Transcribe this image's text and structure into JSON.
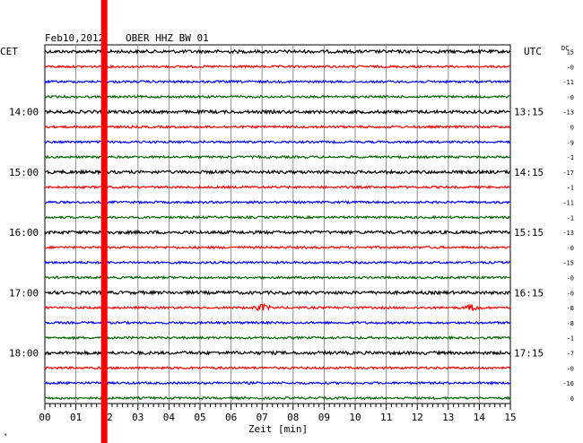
{
  "header": {
    "date": "Feb10,2012",
    "station": "OBER HHZ BW 01",
    "left_tz": "CET",
    "right_tz": "UTC",
    "dc_label": "DC"
  },
  "chart_data": {
    "type": "line",
    "title": "Feb10,2012 OBER HHZ BW 01",
    "xlabel": "Zeit [min]",
    "x_ticks": [
      "00",
      "01",
      "02",
      "03",
      "04",
      "05",
      "06",
      "07",
      "08",
      "09",
      "10",
      "11",
      "12",
      "13",
      "14",
      "15"
    ],
    "xlim": [
      0,
      15
    ],
    "grid": true,
    "trace_colors": [
      "#000000",
      "#ff0000",
      "#0000ff",
      "#006600"
    ],
    "left_time_labels": [
      "14:00",
      "15:00",
      "16:00",
      "17:00",
      "18:00"
    ],
    "right_time_labels": [
      "13:15",
      "14:15",
      "15:15",
      "16:15",
      "17:15"
    ],
    "dc_offsets": [
      "15",
      "-0",
      "-11",
      "-0",
      "-13",
      "0",
      "-9",
      "-1",
      "-17",
      "-1",
      "-11",
      "-1",
      "-13",
      "-0",
      "-15",
      "-0",
      "-0",
      "-8",
      "-8",
      "-1",
      "-7",
      "-0",
      "-16",
      "0"
    ],
    "markers": [
      {
        "type": "vertical-line",
        "x_minute": 1.9,
        "color": "#ff0000"
      }
    ],
    "events": [
      {
        "row": 17,
        "x_minute": 7.0
      },
      {
        "row": 17,
        "x_minute": 13.8
      }
    ]
  }
}
